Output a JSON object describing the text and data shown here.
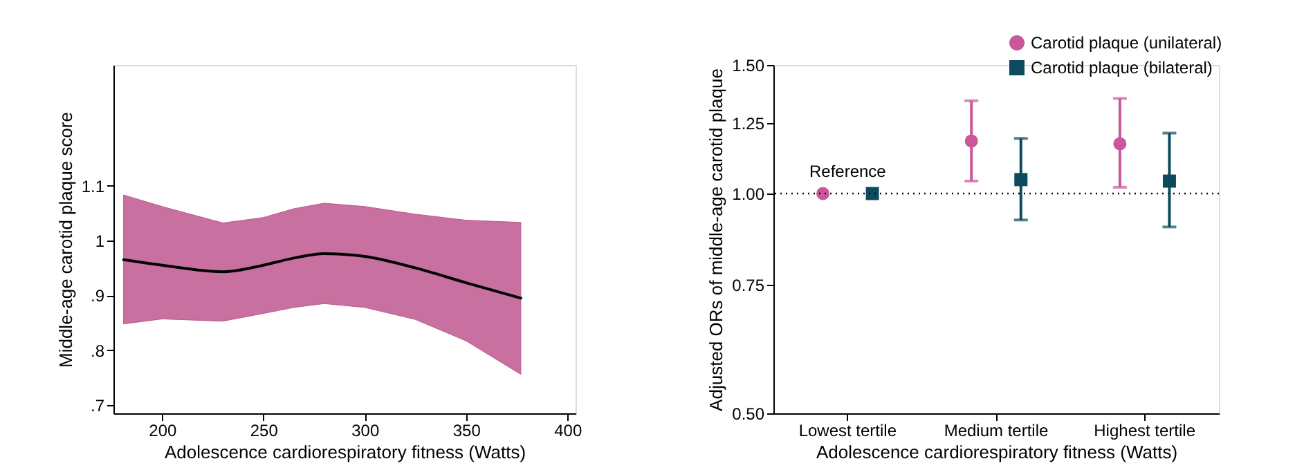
{
  "chart_data": [
    {
      "type": "line",
      "xlabel": "Adolescence cardiorespiratory fitness (Watts)",
      "ylabel": "Middle-age carotid plaque score",
      "xlim": [
        176,
        404
      ],
      "xticks": [
        200,
        250,
        300,
        350,
        400
      ],
      "ylim": [
        0.685,
        1.32
      ],
      "yticks": [
        {
          "value": 0.7,
          "label": ".7"
        },
        {
          "value": 0.8,
          "label": ".8"
        },
        {
          "value": 0.9,
          "label": ".9"
        },
        {
          "value": 1.0,
          "label": "1"
        },
        {
          "value": 1.1,
          "label": "1.1"
        }
      ],
      "grid": false,
      "legend": false,
      "marker": "none",
      "line_style": "solid",
      "x": [
        181,
        200,
        230,
        250,
        265,
        280,
        300,
        325,
        350,
        377
      ],
      "series": [
        {
          "color": "#000000",
          "values": [
            0.965,
            0.955,
            0.943,
            0.955,
            0.968,
            0.976,
            0.971,
            0.95,
            0.923,
            0.895
          ],
          "lower": [
            0.848,
            0.857,
            0.853,
            0.867,
            0.878,
            0.885,
            0.878,
            0.856,
            0.817,
            0.756
          ],
          "upper": [
            1.083,
            1.062,
            1.032,
            1.042,
            1.058,
            1.068,
            1.062,
            1.048,
            1.037,
            1.033
          ]
        }
      ]
    },
    {
      "type": "scatter",
      "xlabel": "Adolescence cardiorespiratory fitness (Watts)",
      "ylabel": "Adjusted ORs of middle-age carotid plaque",
      "categories": [
        "Lowest tertile",
        "Medium tertile",
        "Highest tertile"
      ],
      "log": true,
      "ylim": [
        0.5,
        1.5
      ],
      "yticks": [
        {
          "value": 0.5,
          "label": "0.50"
        },
        {
          "value": 0.75,
          "label": "0.75"
        },
        {
          "value": 1.0,
          "label": "1.00"
        },
        {
          "value": 1.25,
          "label": "1.25"
        },
        {
          "value": 1.5,
          "label": "1.50"
        }
      ],
      "grid": false,
      "legend": "top right",
      "ref_lines": [
        {
          "axis": "y",
          "value": 1.0,
          "line_style": "dotted",
          "color": "#000000"
        }
      ],
      "annotations": [
        {
          "text": "Reference",
          "x": "Lowest tertile",
          "y": 1.0
        }
      ],
      "series": [
        {
          "name": "Carotid plaque (unilateral)",
          "color": "#c9579a",
          "marker": "circle",
          "values": [
            1.0,
            1.18,
            1.17
          ],
          "errors": [
            null,
            [
              1.04,
              1.34
            ],
            [
              1.02,
              1.35
            ]
          ]
        },
        {
          "name": "Carotid plaque (bilateral)",
          "color": "#0d4a5e",
          "marker": "square",
          "values": [
            1.0,
            1.045,
            1.04
          ],
          "errors": [
            null,
            [
              0.92,
              1.19
            ],
            [
              0.9,
              1.21
            ]
          ]
        }
      ]
    }
  ]
}
